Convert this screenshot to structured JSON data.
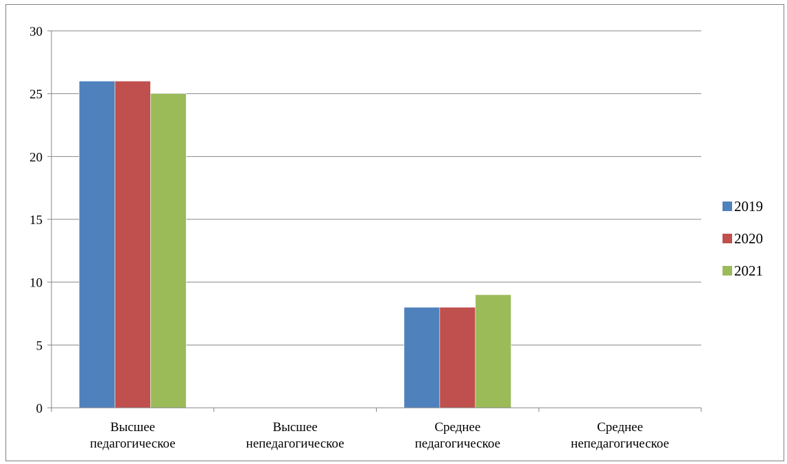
{
  "chart_data": {
    "type": "bar",
    "title": "",
    "xlabel": "",
    "ylabel": "",
    "categories": [
      [
        "Высшее",
        "педагогическое"
      ],
      [
        "Высшее",
        "непедагогическое"
      ],
      [
        "Среднее",
        "педагогическое"
      ],
      [
        "Среднее",
        "непедагогическое"
      ]
    ],
    "series": [
      {
        "name": "2019",
        "color": "#4f81bd",
        "values": [
          26,
          0,
          8,
          0
        ]
      },
      {
        "name": "2020",
        "color": "#c0504d",
        "values": [
          26,
          0,
          8,
          0
        ]
      },
      {
        "name": "2021",
        "color": "#9bbb59",
        "values": [
          25,
          0,
          9,
          0
        ]
      }
    ],
    "ylim": [
      0,
      30
    ],
    "yticks": [
      0,
      5,
      10,
      15,
      20,
      25,
      30
    ],
    "grid": true,
    "legend": "right"
  }
}
